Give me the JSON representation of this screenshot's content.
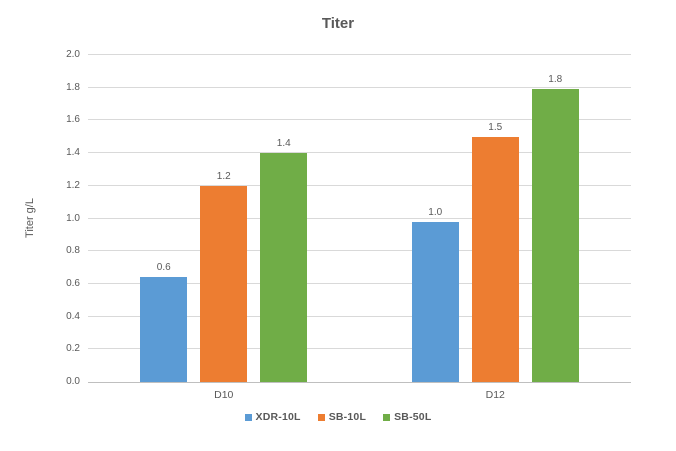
{
  "chart_data": {
    "type": "bar",
    "title": "Titer",
    "ylabel": "Titer g/L",
    "xlabel": "",
    "ylim": [
      0.0,
      2.0
    ],
    "ytick_step": 0.2,
    "ytick_labels": [
      "0.0",
      "0.2",
      "0.4",
      "0.6",
      "0.8",
      "1.0",
      "1.2",
      "1.4",
      "1.6",
      "1.8",
      "2.0"
    ],
    "grid": true,
    "legend_position": "bottom-center",
    "categories": [
      "D10",
      "D12"
    ],
    "series": [
      {
        "name": "XDR-10L",
        "color": "#5B9BD5",
        "values": [
          0.6,
          1.0
        ],
        "data_labels": [
          "0.6",
          "1.0"
        ],
        "bar_heights_gL": [
          0.645,
          0.98
        ]
      },
      {
        "name": "SB-10L",
        "color": "#ED7D31",
        "values": [
          1.2,
          1.5
        ],
        "data_labels": [
          "1.2",
          "1.5"
        ],
        "bar_heights_gL": [
          1.2,
          1.5
        ]
      },
      {
        "name": "SB-50L",
        "color": "#70AD47",
        "values": [
          1.4,
          1.8
        ],
        "data_labels": [
          "1.4",
          "1.8"
        ],
        "bar_heights_gL": [
          1.4,
          1.795
        ]
      }
    ],
    "colors": {
      "background": "#ffffff",
      "gridline": "#d9d9d9",
      "axis_line": "#bfbfbf",
      "text": "#595959"
    }
  }
}
